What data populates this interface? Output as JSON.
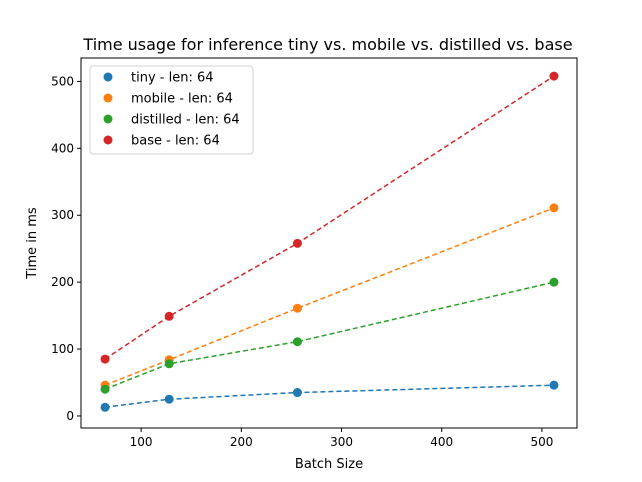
{
  "chart_data": {
    "type": "scatter",
    "title": "Time usage for inference tiny vs. mobile vs. distilled vs. base",
    "xlabel": "Batch Size",
    "ylabel": "Time in ms",
    "xlim": [
      40,
      535
    ],
    "ylim": [
      -18,
      535
    ],
    "xticks": [
      100,
      200,
      300,
      400,
      500
    ],
    "yticks": [
      0,
      100,
      200,
      300,
      400,
      500
    ],
    "grid": false,
    "legend_position": "upper-left",
    "x": [
      64,
      128,
      256,
      512
    ],
    "series": [
      {
        "name": "tiny - len: 64",
        "color": "#1f77b4",
        "values": [
          13,
          25,
          35,
          46
        ]
      },
      {
        "name": "mobile - len: 64",
        "color": "#ff7f0e",
        "values": [
          46,
          84,
          161,
          311
        ]
      },
      {
        "name": "distilled - len: 64",
        "color": "#2ca02c",
        "values": [
          40,
          78,
          111,
          200
        ]
      },
      {
        "name": "base - len: 64",
        "color": "#d62728",
        "values": [
          85,
          149,
          258,
          508
        ]
      }
    ]
  }
}
